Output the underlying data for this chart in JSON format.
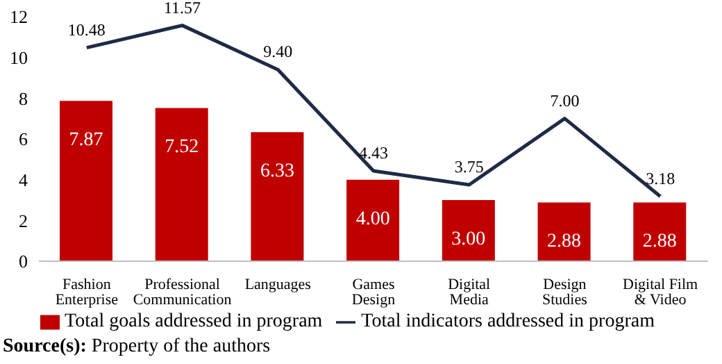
{
  "chart_data": {
    "type": "bar",
    "categories": [
      "Fashion Enterprise",
      "Professional Communication",
      "Languages",
      "Games Design",
      "Digital Media",
      "Design Studies",
      "Digital Film & Video"
    ],
    "series": [
      {
        "name": "Total goals addressed in program",
        "color": "#c00000",
        "values": [
          7.87,
          7.52,
          6.33,
          4.0,
          3.0,
          2.88,
          2.88
        ],
        "value_labels": [
          "7.87",
          "7.52",
          "6.33",
          "4.00",
          "3.00",
          "2.88",
          "2.88"
        ]
      },
      {
        "name": "Total indicators addressed in program",
        "type": "line",
        "color": "#1f2b45",
        "values": [
          10.48,
          11.57,
          9.4,
          4.43,
          3.75,
          7.0,
          3.18
        ],
        "value_labels": [
          "10.48",
          "11.57",
          "9.40",
          "4.43",
          "3.75",
          "7.00",
          "3.18"
        ]
      }
    ],
    "ylim": [
      0,
      12
    ],
    "yticks": [
      0,
      2,
      4,
      6,
      8,
      10,
      12
    ],
    "legend": "bottom",
    "marker": "none",
    "line_style": "solid",
    "grid": false,
    "annotations": [
      "Source(s): Property of the authors"
    ]
  }
}
